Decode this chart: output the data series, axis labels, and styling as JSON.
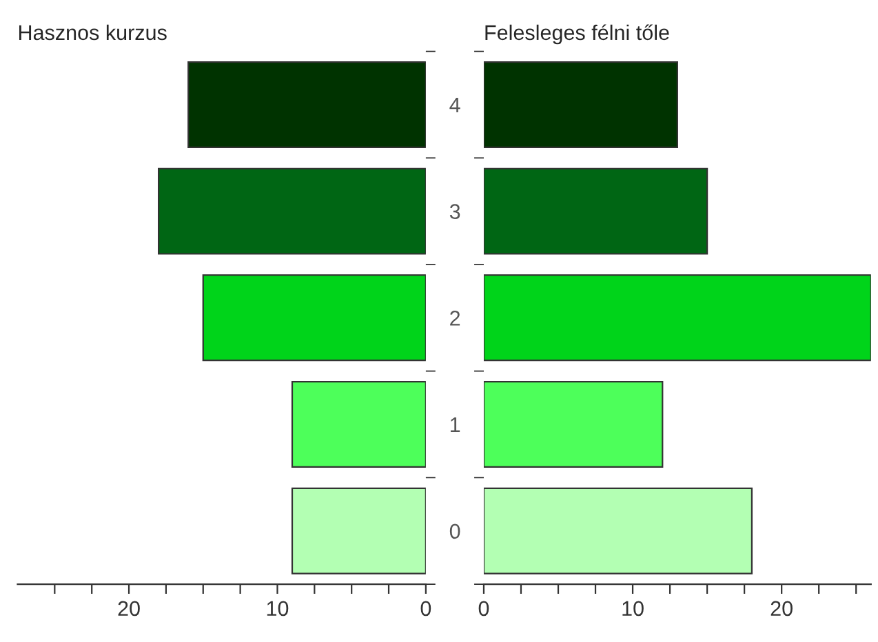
{
  "chart_data": [
    {
      "type": "bar",
      "orientation": "horizontal",
      "title": "Hasznos kurzus",
      "categories": [
        "4",
        "3",
        "2",
        "1",
        "0"
      ],
      "values": [
        16,
        18,
        15,
        9,
        9
      ],
      "colors": [
        "#003300",
        "#006614",
        "#00d41a",
        "#4dff5a",
        "#b3ffb3"
      ],
      "xlim": [
        27.5,
        0
      ],
      "xticks": [
        {
          "value": 25,
          "label": null
        },
        {
          "value": 22.5,
          "label": null
        },
        20,
        {
          "value": 17.5,
          "label": null
        },
        {
          "value": 15,
          "label": null
        },
        {
          "value": 12.5,
          "label": null
        },
        10,
        {
          "value": 7.5,
          "label": null
        },
        {
          "value": 5,
          "label": null
        },
        {
          "value": 2.5,
          "label": null
        },
        0
      ],
      "tick_labels": "x",
      "grid": false,
      "legend": false
    },
    {
      "type": "bar",
      "orientation": "horizontal",
      "title": "Felesleges félni tőle",
      "categories": [
        "4",
        "3",
        "2",
        "1",
        "0"
      ],
      "values": [
        13,
        15,
        26,
        12,
        18
      ],
      "colors": [
        "#003300",
        "#006614",
        "#00d41a",
        "#4dff5a",
        "#b3ffb3"
      ],
      "xlim": [
        0,
        26
      ],
      "xticks": [
        0,
        {
          "value": 2.5,
          "label": null
        },
        {
          "value": 5,
          "label": null
        },
        {
          "value": 7.5,
          "label": null
        },
        10,
        {
          "value": 12.5,
          "label": null
        },
        {
          "value": 15,
          "label": null
        },
        {
          "value": 17.5,
          "label": null
        },
        20,
        {
          "value": 22.5,
          "label": null
        },
        {
          "value": 25,
          "label": null
        }
      ],
      "grid": false,
      "legend": false
    }
  ]
}
